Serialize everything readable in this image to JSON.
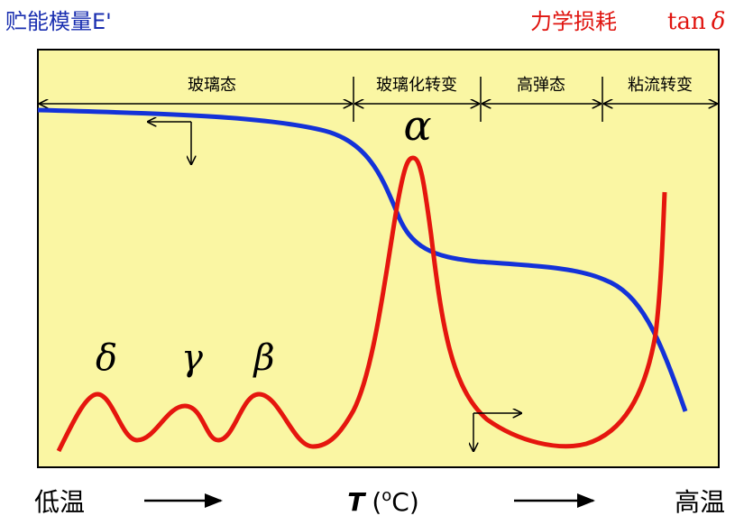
{
  "header": {
    "left_title": "贮能模量E'",
    "right_title": "力学损耗",
    "right_symbol": "tan",
    "right_symbol_greek": "δ"
  },
  "regions": [
    "玻璃态",
    "玻璃化转变",
    "高弹态",
    "粘流转变"
  ],
  "peaks": [
    "δ",
    "γ",
    "β",
    "α"
  ],
  "x_axis": {
    "low": "低温",
    "high": "高温",
    "variable": "T",
    "unit_open": "(",
    "degree": "o",
    "unit_rest": "C)"
  }
}
